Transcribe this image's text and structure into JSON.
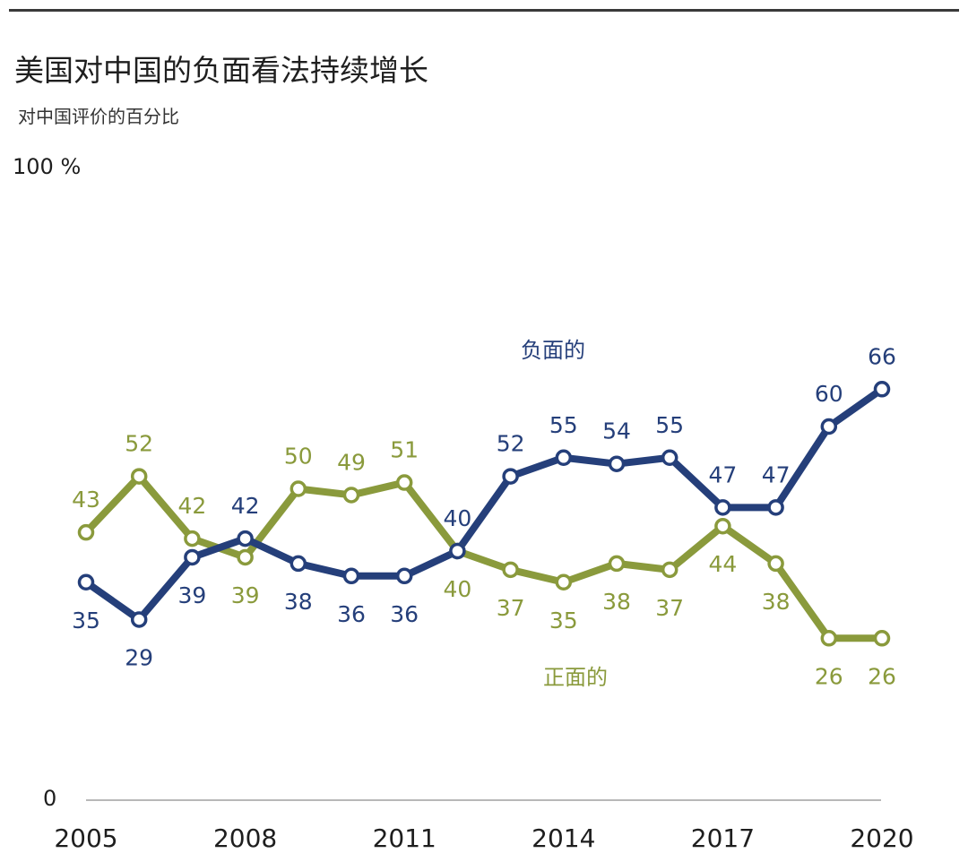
{
  "header": {
    "title": "美国对中国的负面看法持续增长",
    "subtitle": "对中国评价的百分比"
  },
  "chart_data": {
    "type": "line",
    "title": "美国对中国的负面看法持续增长",
    "subtitle": "对中国评价的百分比",
    "x": [
      2005,
      2006,
      2007,
      2008,
      2009,
      2010,
      2011,
      2012,
      2013,
      2014,
      2015,
      2016,
      2017,
      2018,
      2019,
      2020
    ],
    "xticks": [
      "2005",
      "2008",
      "2011",
      "2014",
      "2017",
      "2020"
    ],
    "ylim": [
      0,
      100
    ],
    "yticks": [
      "0",
      "100 %"
    ],
    "grid": false,
    "series": [
      {
        "name": "负面的",
        "color": "#253f7a",
        "values": [
          35,
          29,
          39,
          42,
          38,
          36,
          36,
          40,
          52,
          55,
          54,
          55,
          47,
          47,
          60,
          66
        ],
        "label_placement": [
          "below",
          "below",
          "below",
          "above",
          "below",
          "below",
          "below",
          "above",
          "above",
          "above",
          "above",
          "above",
          "above",
          "above",
          "above",
          "above"
        ]
      },
      {
        "name": "正面的",
        "color": "#8a9a3c",
        "values": [
          43,
          52,
          42,
          39,
          50,
          49,
          51,
          40,
          37,
          35,
          38,
          37,
          44,
          38,
          26,
          26
        ],
        "label_placement": [
          "above",
          "above",
          "above",
          "below",
          "above",
          "above",
          "above",
          "below",
          "below",
          "below",
          "below",
          "below",
          "below",
          "below",
          "below",
          "below"
        ]
      }
    ]
  }
}
